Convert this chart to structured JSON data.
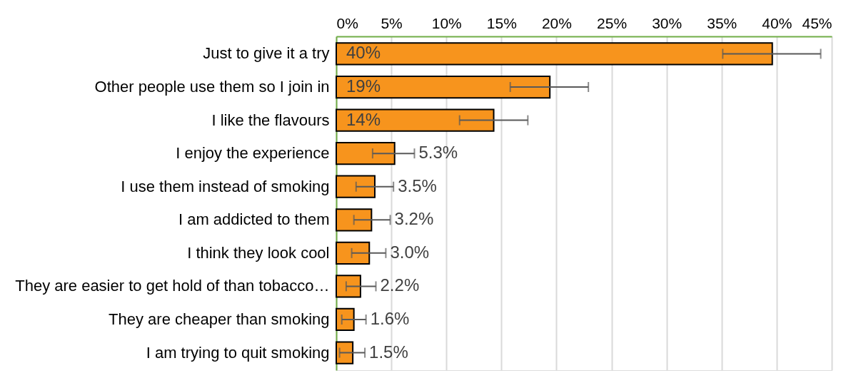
{
  "chart_data": {
    "type": "bar",
    "orientation": "horizontal",
    "categories": [
      "Just to give it a try",
      "Other people use them so I join in",
      "I like the flavours",
      "I enjoy the experience",
      "I use them instead of smoking",
      "I am addicted to them",
      "I think they look cool",
      "They are easier to get hold of than tobacco…",
      "They are cheaper than smoking",
      "I am trying to quit smoking"
    ],
    "values": [
      39.6,
      19.4,
      14.3,
      5.3,
      3.5,
      3.2,
      3.0,
      2.2,
      1.6,
      1.5
    ],
    "value_labels": [
      "40%",
      "19%",
      "14%",
      "5.3%",
      "3.5%",
      "3.2%",
      "3.0%",
      "2.2%",
      "1.6%",
      "1.5%"
    ],
    "errors": [
      [
        35.1,
        44.0
      ],
      [
        15.8,
        22.9
      ],
      [
        11.2,
        17.4
      ],
      [
        3.3,
        7.1
      ],
      [
        1.8,
        5.2
      ],
      [
        1.6,
        4.9
      ],
      [
        1.4,
        4.5
      ],
      [
        0.9,
        3.6
      ],
      [
        0.5,
        2.7
      ],
      [
        0.3,
        2.6
      ]
    ],
    "color": "#f7941d",
    "xlim": [
      0,
      45
    ],
    "xticks": [
      {
        "value": 0,
        "label": "0%"
      },
      {
        "value": 5,
        "label": "5%"
      },
      {
        "value": 10,
        "label": "10%"
      },
      {
        "value": 15,
        "label": "15%"
      },
      {
        "value": 20,
        "label": "20%"
      },
      {
        "value": 25,
        "label": "25%"
      },
      {
        "value": 30,
        "label": "30%"
      },
      {
        "value": 35,
        "label": "35%"
      },
      {
        "value": 40,
        "label": "40%"
      },
      {
        "value": 45,
        "label": "45%"
      }
    ],
    "grid": "x"
  }
}
